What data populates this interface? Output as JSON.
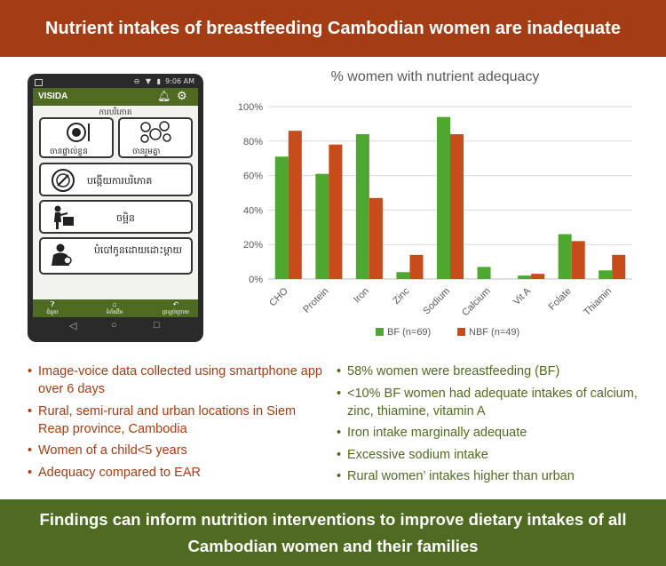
{
  "header": {
    "title": "Nutrient intakes of breastfeeding Cambodian women are inadequate"
  },
  "phone": {
    "status_time": "9:06 AM",
    "app_title": "VISIDA",
    "section_title": "ការបរិភោគ",
    "buttons": [
      {
        "label": "ចានផ្ទាល់ខ្លួន",
        "icon": "plate-icon"
      },
      {
        "label": "ចានរួមគ្នា",
        "icon": "shared-dishes-icon"
      },
      {
        "label": "បង្កើយការបរិភោគ",
        "icon": "plate-cutlery-icon"
      },
      {
        "label": "ចម្អិន",
        "icon": "cooking-icon"
      },
      {
        "label": "បំបៅកូនដោយដោះម្តាយ",
        "icon": "breastfeeding-icon"
      }
    ],
    "nav": [
      {
        "label": "ជំនួយ",
        "icon": "help-icon"
      },
      {
        "label": "ទំព័រដើម",
        "icon": "home-icon"
      },
      {
        "label": "ត្រឡប់ក្រោយ",
        "icon": "back-icon"
      }
    ]
  },
  "chart_data": {
    "type": "bar",
    "title": "% women with nutrient adequacy",
    "categories": [
      "CHO",
      "Protein",
      "Iron",
      "Zinc",
      "Sodium",
      "Calcium",
      "Vit A",
      "Folate",
      "Thiamin"
    ],
    "series": [
      {
        "name": "BF (n=69)",
        "color": "#4ea72e",
        "values": [
          71,
          61,
          84,
          4,
          94,
          7,
          2,
          26,
          5
        ]
      },
      {
        "name": "NBF (n=49)",
        "color": "#c84b1c",
        "values": [
          86,
          78,
          47,
          14,
          84,
          0,
          3,
          22,
          14
        ]
      }
    ],
    "ylim": [
      0,
      100
    ],
    "yticks": [
      "0%",
      "20%",
      "40%",
      "60%",
      "80%",
      "100%"
    ],
    "grid": true,
    "legend": "bottom"
  },
  "left_bullets": [
    "Image-voice data collected using smartphone app over 6 days",
    "Rural, semi-rural and urban locations in Siem Reap province, Cambodia",
    "Women of a child<5 years",
    "Adequacy compared to EAR"
  ],
  "right_bullets": [
    "58% women were breastfeeding (BF)",
    "<10% BF women had adequate intakes of calcium, zinc, thiamine, vitamin A",
    "Iron intake marginally adequate",
    "Excessive sodium intake",
    "Rural women’ intakes higher than urban"
  ],
  "footer": {
    "line1": "Findings can inform nutrition interventions to improve dietary intakes of all",
    "line2": "Cambodian women and their families"
  }
}
